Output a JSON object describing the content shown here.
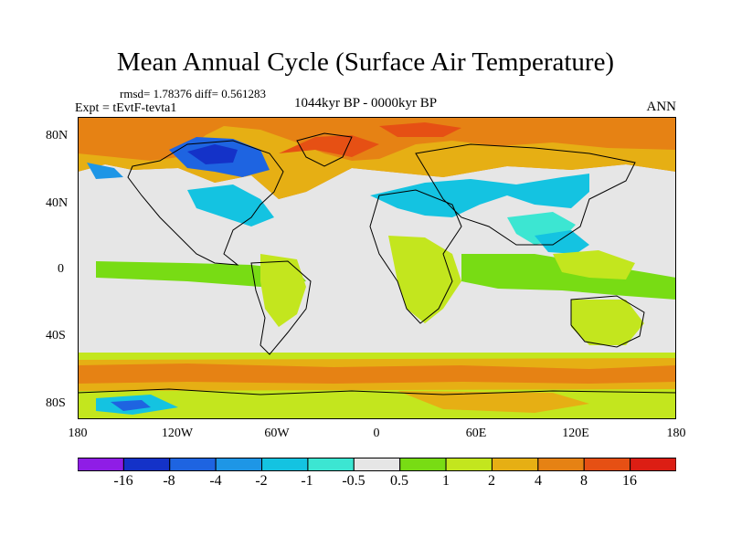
{
  "title": "Mean Annual Cycle (Surface Air Temperature)",
  "stats": "rmsd= 1.78376 diff= 0.561283",
  "experiment": "Expt = tEvtF-tevta1",
  "period": "1044kyr BP - 0000kyr BP",
  "season": "ANN",
  "lat_labels": [
    "80N",
    "40N",
    "0",
    "40S",
    "80S"
  ],
  "lon_labels": [
    "180",
    "120W",
    "60W",
    "0",
    "60E",
    "120E",
    "180"
  ],
  "colorbar": {
    "labels": [
      "-16",
      "-8",
      "-4",
      "-2",
      "-1",
      "-0.5",
      "0.5",
      "1",
      "2",
      "4",
      "8",
      "16"
    ],
    "colors": [
      "#8f1de6",
      "#1432c8",
      "#1e64e1",
      "#1e96e6",
      "#14c3e1",
      "#3ce6d2",
      "#e6e6e6",
      "#78dc14",
      "#c3e61e",
      "#e6af14",
      "#e68214",
      "#e65014",
      "#dc1e14"
    ]
  }
}
